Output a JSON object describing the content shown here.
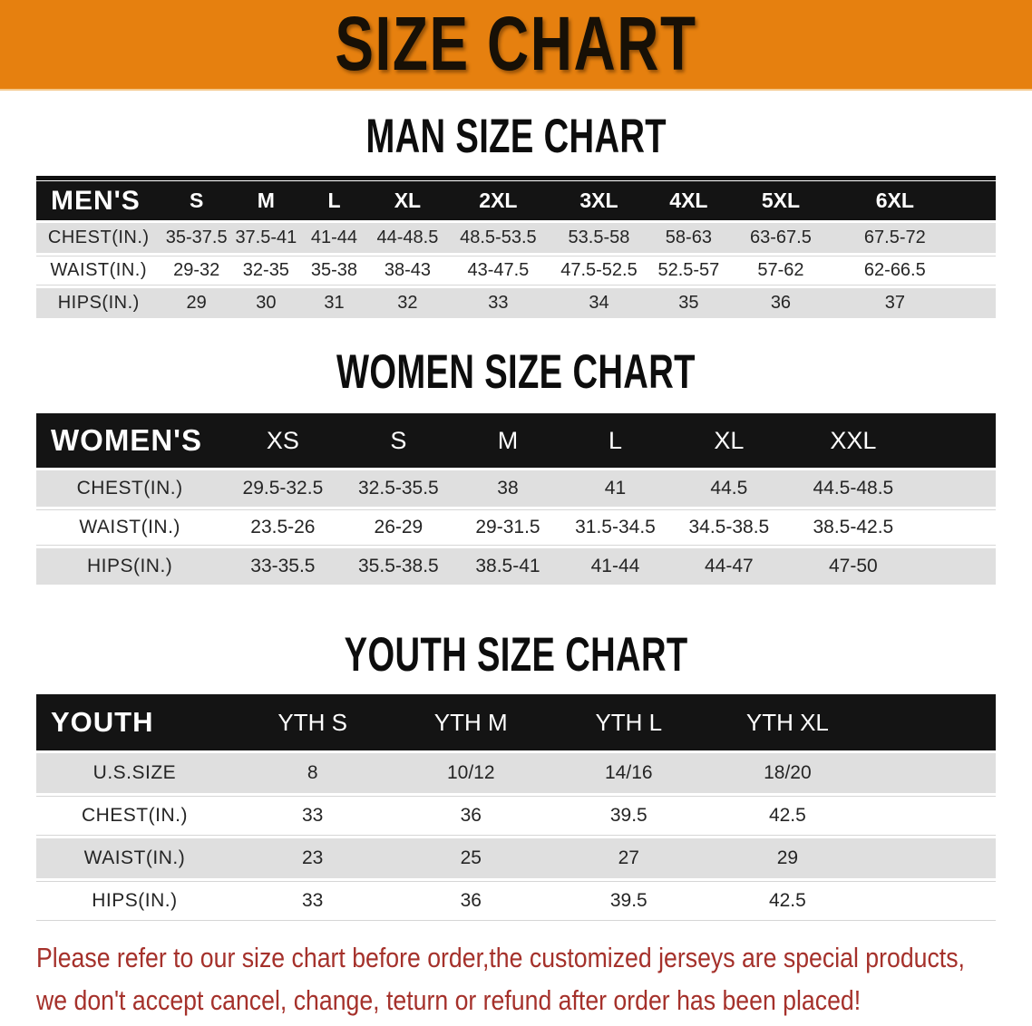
{
  "banner": {
    "title": "SIZE CHART"
  },
  "colors": {
    "banner_bg": "#E6800F",
    "band_bg": "#141414",
    "row_gray": "#DFDFDF",
    "footer_red": "#A5312B"
  },
  "sections": [
    {
      "heading": "MAN SIZE CHART",
      "table": {
        "label": "MEN'S",
        "columns": [
          "S",
          "M",
          "L",
          "XL",
          "2XL",
          "3XL",
          "4XL",
          "5XL",
          "6XL"
        ],
        "rows": [
          {
            "label": "CHEST(IN.)",
            "values": [
              "35-37.5",
              "37.5-41",
              "41-44",
              "44-48.5",
              "48.5-53.5",
              "53.5-58",
              "58-63",
              "63-67.5",
              "67.5-72"
            ]
          },
          {
            "label": "WAIST(IN.)",
            "values": [
              "29-32",
              "32-35",
              "35-38",
              "38-43",
              "43-47.5",
              "47.5-52.5",
              "52.5-57",
              "57-62",
              "62-66.5"
            ]
          },
          {
            "label": "HIPS(IN.)",
            "values": [
              "29",
              "30",
              "31",
              "32",
              "33",
              "34",
              "35",
              "36",
              "37"
            ]
          }
        ]
      }
    },
    {
      "heading": "WOMEN SIZE CHART",
      "table": {
        "label": "WOMEN'S",
        "columns": [
          "XS",
          "S",
          "M",
          "L",
          "XL",
          "XXL"
        ],
        "rows": [
          {
            "label": "CHEST(IN.)",
            "values": [
              "29.5-32.5",
              "32.5-35.5",
              "38",
              "41",
              "44.5",
              "44.5-48.5"
            ]
          },
          {
            "label": "WAIST(IN.)",
            "values": [
              "23.5-26",
              "26-29",
              "29-31.5",
              "31.5-34.5",
              "34.5-38.5",
              "38.5-42.5"
            ]
          },
          {
            "label": "HIPS(IN.)",
            "values": [
              "33-35.5",
              "35.5-38.5",
              "38.5-41",
              "41-44",
              "44-47",
              "47-50"
            ]
          }
        ]
      }
    },
    {
      "heading": "YOUTH SIZE CHART",
      "table": {
        "label": "YOUTH",
        "columns": [
          "YTH S",
          "YTH M",
          "YTH L",
          "YTH XL"
        ],
        "rows": [
          {
            "label": "U.S.SIZE",
            "values": [
              "8",
              "10/12",
              "14/16",
              "18/20"
            ]
          },
          {
            "label": "CHEST(IN.)",
            "values": [
              "33",
              "36",
              "39.5",
              "42.5"
            ]
          },
          {
            "label": "WAIST(IN.)",
            "values": [
              "23",
              "25",
              "27",
              "29"
            ]
          },
          {
            "label": "HIPS(IN.)",
            "values": [
              "33",
              "36",
              "39.5",
              "42.5"
            ]
          }
        ]
      }
    }
  ],
  "footer": {
    "line1": "Please refer to our size chart before order,the customized jerseys are special products,",
    "line2": "we don't accept cancel, change, teturn or refund after order has been placed!"
  }
}
